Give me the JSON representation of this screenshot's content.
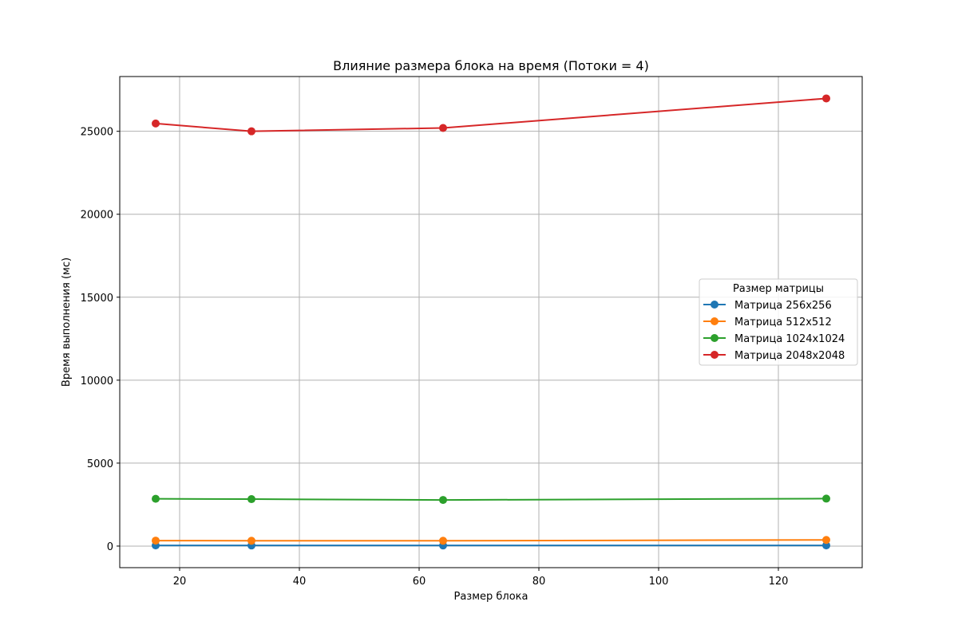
{
  "chart_data": {
    "type": "line",
    "title": "Влияние размера блока на время (Потоки = 4)",
    "xlabel": "Размер блока",
    "ylabel": "Время выполнения (мс)",
    "xlim": [
      10,
      134
    ],
    "ylim": [
      -1300,
      28300
    ],
    "xticks": [
      20,
      40,
      60,
      80,
      100,
      120
    ],
    "yticks": [
      0,
      5000,
      10000,
      15000,
      20000,
      25000
    ],
    "grid": true,
    "legend": {
      "title": "Размер матрицы",
      "placement": "center-right"
    },
    "x": [
      16,
      32,
      64,
      128
    ],
    "series": [
      {
        "name": "Матрица 256x256",
        "color": "#1f77b4",
        "values": [
          40,
          38,
          38,
          42
        ]
      },
      {
        "name": "Матрица 512x512",
        "color": "#ff7f0e",
        "values": [
          330,
          320,
          320,
          370
        ]
      },
      {
        "name": "Матрица 1024x1024",
        "color": "#2ca02c",
        "values": [
          2850,
          2830,
          2780,
          2860
        ]
      },
      {
        "name": "Матрица 2048x2048",
        "color": "#d62728",
        "values": [
          25470,
          25000,
          25200,
          26980
        ]
      }
    ]
  }
}
